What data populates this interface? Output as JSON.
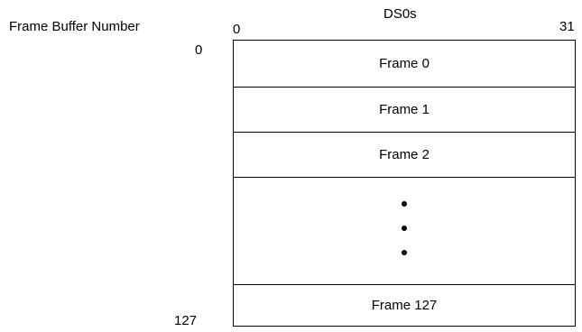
{
  "labels": {
    "row_axis_title": "Frame Buffer Number",
    "row_start": "0",
    "row_end": "127",
    "column_axis_title": "DS0s",
    "column_start": "0",
    "column_end": "31"
  },
  "frames": {
    "frame_0": "Frame 0",
    "frame_1": "Frame 1",
    "frame_2": "Frame 2",
    "frame_last": "Frame 127"
  }
}
